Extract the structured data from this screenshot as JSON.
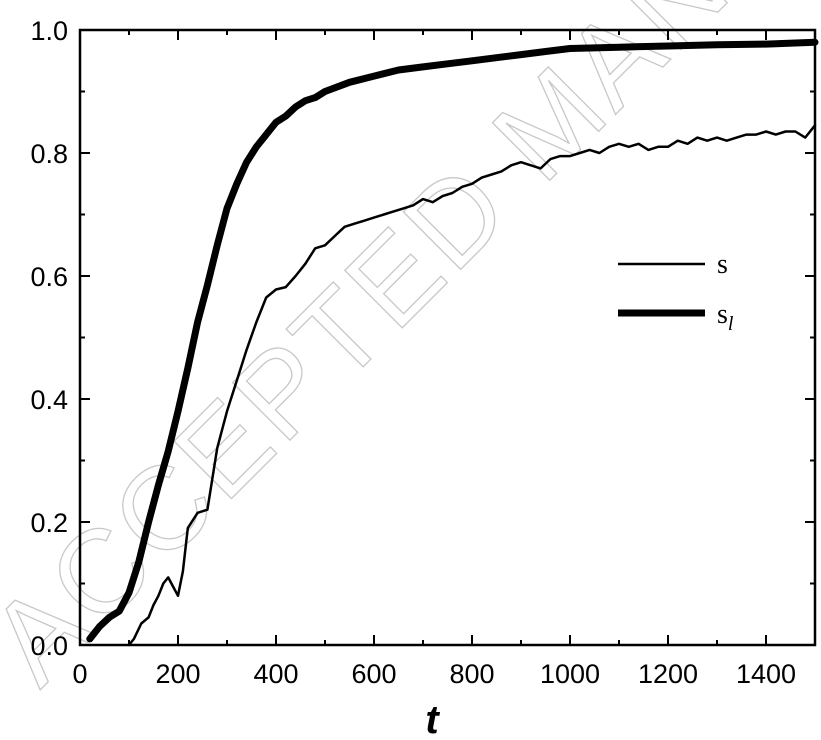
{
  "watermark": "ACCEPTED MANUSCRIPT",
  "chart_data": {
    "type": "line",
    "xlabel": "t",
    "ylabel": "",
    "xlim": [
      0,
      1500
    ],
    "ylim": [
      0.0,
      1.0
    ],
    "xticks": [
      "0",
      "200",
      "400",
      "600",
      "800",
      "1000",
      "1200",
      "1400"
    ],
    "yticks": [
      "0.0",
      "0.2",
      "0.4",
      "0.6",
      "0.8",
      "1.0"
    ],
    "grid": false,
    "legend_position": "right-middle",
    "series": [
      {
        "name": "s",
        "line_weight": "thin",
        "color": "#000000",
        "x": [
          100,
          110,
          125,
          140,
          150,
          160,
          170,
          180,
          190,
          200,
          210,
          220,
          240,
          260,
          270,
          280,
          300,
          320,
          340,
          360,
          380,
          400,
          420,
          440,
          460,
          480,
          500,
          520,
          540,
          560,
          580,
          600,
          620,
          640,
          660,
          680,
          700,
          720,
          740,
          760,
          780,
          800,
          820,
          840,
          860,
          880,
          900,
          920,
          940,
          960,
          980,
          1000,
          1020,
          1040,
          1060,
          1080,
          1100,
          1120,
          1140,
          1160,
          1180,
          1200,
          1220,
          1240,
          1260,
          1280,
          1300,
          1320,
          1340,
          1360,
          1380,
          1400,
          1420,
          1440,
          1460,
          1480,
          1500
        ],
        "y": [
          0.0,
          0.01,
          0.035,
          0.045,
          0.065,
          0.08,
          0.1,
          0.11,
          0.095,
          0.08,
          0.12,
          0.19,
          0.215,
          0.22,
          0.27,
          0.32,
          0.38,
          0.43,
          0.48,
          0.525,
          0.565,
          0.578,
          0.582,
          0.6,
          0.62,
          0.645,
          0.65,
          0.665,
          0.68,
          0.685,
          0.69,
          0.695,
          0.7,
          0.705,
          0.71,
          0.715,
          0.725,
          0.72,
          0.73,
          0.735,
          0.745,
          0.75,
          0.76,
          0.765,
          0.77,
          0.78,
          0.785,
          0.78,
          0.775,
          0.79,
          0.795,
          0.795,
          0.8,
          0.805,
          0.8,
          0.81,
          0.815,
          0.81,
          0.815,
          0.805,
          0.81,
          0.81,
          0.82,
          0.815,
          0.825,
          0.82,
          0.825,
          0.82,
          0.825,
          0.83,
          0.83,
          0.835,
          0.83,
          0.835,
          0.835,
          0.825,
          0.845
        ]
      },
      {
        "name": "s_l",
        "name_main": "s",
        "name_sub": "l",
        "line_weight": "thick",
        "color": "#000000",
        "x": [
          20,
          40,
          60,
          80,
          100,
          120,
          140,
          160,
          180,
          200,
          220,
          240,
          260,
          280,
          300,
          320,
          340,
          360,
          380,
          400,
          420,
          440,
          460,
          480,
          500,
          550,
          600,
          650,
          700,
          750,
          800,
          850,
          900,
          950,
          1000,
          1100,
          1200,
          1300,
          1400,
          1500
        ],
        "y": [
          0.01,
          0.03,
          0.045,
          0.055,
          0.085,
          0.135,
          0.2,
          0.26,
          0.315,
          0.38,
          0.45,
          0.525,
          0.585,
          0.65,
          0.71,
          0.75,
          0.785,
          0.81,
          0.83,
          0.85,
          0.86,
          0.875,
          0.885,
          0.89,
          0.9,
          0.915,
          0.925,
          0.935,
          0.94,
          0.945,
          0.95,
          0.955,
          0.96,
          0.965,
          0.97,
          0.972,
          0.974,
          0.976,
          0.977,
          0.98
        ]
      }
    ]
  }
}
